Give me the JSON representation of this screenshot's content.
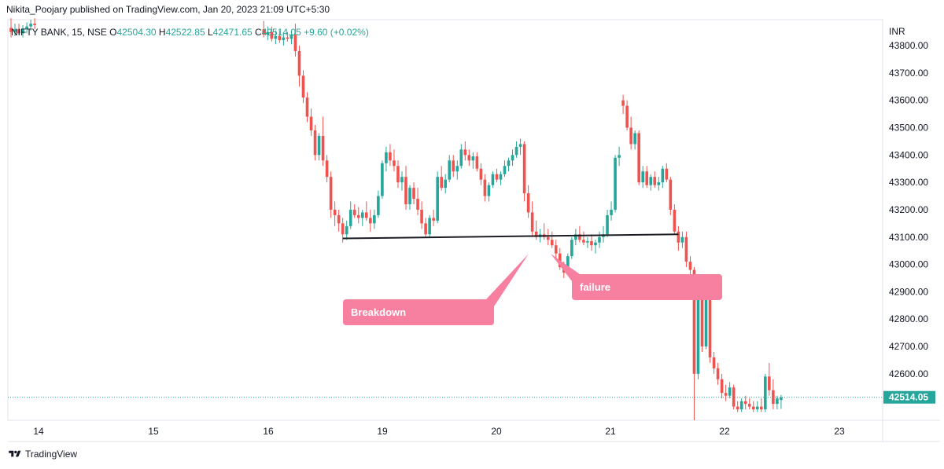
{
  "header": {
    "text": "Nikita_Poojary published on TradingView.com, Jan 20, 2023 21:09 UTC+5:30"
  },
  "footer": {
    "brand": "TradingView",
    "logo_icon": "tradingview-logo-icon"
  },
  "chart_data": {
    "type": "candlestick",
    "title": "",
    "legend": {
      "symbol": "NIFTY BANK, 15, NSE",
      "open_label": "O",
      "open": "42504.30",
      "high_label": "H",
      "high": "42522.85",
      "low_label": "L",
      "low": "42471.65",
      "close_label": "C",
      "close": "42514.05",
      "change": "+9.60 (+0.02%)"
    },
    "currency": "INR",
    "ylim": [
      42430,
      43895
    ],
    "y_ticks": [
      "43800.00",
      "43700.00",
      "43600.00",
      "43500.00",
      "43400.00",
      "43300.00",
      "43200.00",
      "43100.00",
      "43000.00",
      "42900.00",
      "42800.00",
      "42700.00",
      "42600.00"
    ],
    "y_tick_values": [
      43800,
      43700,
      43600,
      43500,
      43400,
      43300,
      43200,
      43100,
      43000,
      42900,
      42800,
      42700,
      42600
    ],
    "x_ticks": [
      "14",
      "15",
      "16",
      "19",
      "20",
      "21",
      "22",
      "23"
    ],
    "last_price": "42514.05",
    "last_price_value": 42514.05,
    "colors": {
      "up": "#26a69a",
      "down": "#ef5350",
      "annotation": "#f77fa0",
      "trendline": "#1c1d24",
      "price_line": "#26a69a"
    },
    "candles": [
      {
        "t": 0,
        "o": 43865,
        "h": 43900,
        "l": 43830,
        "c": 43850
      },
      {
        "t": 1,
        "o": 43850,
        "h": 43880,
        "l": 43835,
        "c": 43860
      },
      {
        "t": 2,
        "o": 43860,
        "h": 43880,
        "l": 43840,
        "c": 43845
      },
      {
        "t": 3,
        "o": 43845,
        "h": 43875,
        "l": 43830,
        "c": 43860
      },
      {
        "t": 4,
        "o": 43860,
        "h": 43885,
        "l": 43845,
        "c": 43870
      },
      {
        "t": 5,
        "o": 43870,
        "h": 43895,
        "l": 43855,
        "c": 43880
      },
      {
        "t": 6,
        "o": 43880,
        "h": 43900,
        "l": 43860,
        "c": 43875
      },
      {
        "t": 64,
        "o": 43860,
        "h": 43890,
        "l": 43830,
        "c": 43840
      },
      {
        "t": 65,
        "o": 43840,
        "h": 43870,
        "l": 43820,
        "c": 43850
      },
      {
        "t": 66,
        "o": 43850,
        "h": 43870,
        "l": 43815,
        "c": 43825
      },
      {
        "t": 67,
        "o": 43825,
        "h": 43855,
        "l": 43805,
        "c": 43835
      },
      {
        "t": 68,
        "o": 43835,
        "h": 43855,
        "l": 43810,
        "c": 43820
      },
      {
        "t": 69,
        "o": 43820,
        "h": 43845,
        "l": 43800,
        "c": 43830
      },
      {
        "t": 70,
        "o": 43830,
        "h": 43850,
        "l": 43815,
        "c": 43825
      },
      {
        "t": 71,
        "o": 43825,
        "h": 43845,
        "l": 43805,
        "c": 43840
      },
      {
        "t": 72,
        "o": 43840,
        "h": 43880,
        "l": 43760,
        "c": 43780
      },
      {
        "t": 73,
        "o": 43780,
        "h": 43800,
        "l": 43650,
        "c": 43690
      },
      {
        "t": 74,
        "o": 43690,
        "h": 43710,
        "l": 43590,
        "c": 43610
      },
      {
        "t": 75,
        "o": 43610,
        "h": 43630,
        "l": 43520,
        "c": 43540
      },
      {
        "t": 76,
        "o": 43540,
        "h": 43570,
        "l": 43470,
        "c": 43490
      },
      {
        "t": 77,
        "o": 43490,
        "h": 43510,
        "l": 43380,
        "c": 43400
      },
      {
        "t": 78,
        "o": 43400,
        "h": 43480,
        "l": 43380,
        "c": 43470
      },
      {
        "t": 79,
        "o": 43470,
        "h": 43540,
        "l": 43360,
        "c": 43380
      },
      {
        "t": 80,
        "o": 43380,
        "h": 43400,
        "l": 43300,
        "c": 43320
      },
      {
        "t": 81,
        "o": 43320,
        "h": 43340,
        "l": 43170,
        "c": 43200
      },
      {
        "t": 82,
        "o": 43200,
        "h": 43230,
        "l": 43140,
        "c": 43180
      },
      {
        "t": 83,
        "o": 43180,
        "h": 43200,
        "l": 43120,
        "c": 43150
      },
      {
        "t": 84,
        "o": 43150,
        "h": 43170,
        "l": 43080,
        "c": 43110
      },
      {
        "t": 85,
        "o": 43110,
        "h": 43160,
        "l": 43090,
        "c": 43140
      },
      {
        "t": 86,
        "o": 43140,
        "h": 43230,
        "l": 43130,
        "c": 43200
      },
      {
        "t": 87,
        "o": 43200,
        "h": 43220,
        "l": 43170,
        "c": 43180
      },
      {
        "t": 88,
        "o": 43180,
        "h": 43210,
        "l": 43150,
        "c": 43170
      },
      {
        "t": 89,
        "o": 43170,
        "h": 43200,
        "l": 43140,
        "c": 43190
      },
      {
        "t": 90,
        "o": 43190,
        "h": 43230,
        "l": 43160,
        "c": 43170
      },
      {
        "t": 91,
        "o": 43170,
        "h": 43200,
        "l": 43120,
        "c": 43150
      },
      {
        "t": 92,
        "o": 43150,
        "h": 43200,
        "l": 43130,
        "c": 43180
      },
      {
        "t": 93,
        "o": 43180,
        "h": 43270,
        "l": 43170,
        "c": 43250
      },
      {
        "t": 94,
        "o": 43250,
        "h": 43380,
        "l": 43240,
        "c": 43370
      },
      {
        "t": 95,
        "o": 43370,
        "h": 43430,
        "l": 43340,
        "c": 43410
      },
      {
        "t": 96,
        "o": 43410,
        "h": 43440,
        "l": 43360,
        "c": 43380
      },
      {
        "t": 97,
        "o": 43380,
        "h": 43420,
        "l": 43340,
        "c": 43360
      },
      {
        "t": 98,
        "o": 43360,
        "h": 43380,
        "l": 43280,
        "c": 43300
      },
      {
        "t": 99,
        "o": 43300,
        "h": 43340,
        "l": 43270,
        "c": 43320
      },
      {
        "t": 100,
        "o": 43320,
        "h": 43360,
        "l": 43200,
        "c": 43220
      },
      {
        "t": 101,
        "o": 43220,
        "h": 43290,
        "l": 43200,
        "c": 43280
      },
      {
        "t": 102,
        "o": 43280,
        "h": 43300,
        "l": 43220,
        "c": 43240
      },
      {
        "t": 103,
        "o": 43240,
        "h": 43280,
        "l": 43180,
        "c": 43200
      },
      {
        "t": 104,
        "o": 43200,
        "h": 43230,
        "l": 43130,
        "c": 43150
      },
      {
        "t": 105,
        "o": 43150,
        "h": 43170,
        "l": 43100,
        "c": 43110
      },
      {
        "t": 106,
        "o": 43110,
        "h": 43180,
        "l": 43100,
        "c": 43170
      },
      {
        "t": 107,
        "o": 43170,
        "h": 43200,
        "l": 43140,
        "c": 43160
      },
      {
        "t": 108,
        "o": 43160,
        "h": 43340,
        "l": 43150,
        "c": 43320
      },
      {
        "t": 109,
        "o": 43320,
        "h": 43360,
        "l": 43270,
        "c": 43280
      },
      {
        "t": 110,
        "o": 43280,
        "h": 43330,
        "l": 43260,
        "c": 43310
      },
      {
        "t": 111,
        "o": 43310,
        "h": 43400,
        "l": 43300,
        "c": 43380
      },
      {
        "t": 112,
        "o": 43380,
        "h": 43400,
        "l": 43320,
        "c": 43340
      },
      {
        "t": 113,
        "o": 43340,
        "h": 43380,
        "l": 43310,
        "c": 43360
      },
      {
        "t": 114,
        "o": 43360,
        "h": 43440,
        "l": 43350,
        "c": 43420
      },
      {
        "t": 115,
        "o": 43420,
        "h": 43450,
        "l": 43380,
        "c": 43400
      },
      {
        "t": 116,
        "o": 43400,
        "h": 43420,
        "l": 43360,
        "c": 43380
      },
      {
        "t": 117,
        "o": 43380,
        "h": 43410,
        "l": 43350,
        "c": 43395
      },
      {
        "t": 118,
        "o": 43395,
        "h": 43410,
        "l": 43340,
        "c": 43350
      },
      {
        "t": 119,
        "o": 43350,
        "h": 43370,
        "l": 43290,
        "c": 43310
      },
      {
        "t": 120,
        "o": 43310,
        "h": 43330,
        "l": 43230,
        "c": 43250
      },
      {
        "t": 121,
        "o": 43250,
        "h": 43300,
        "l": 43230,
        "c": 43290
      },
      {
        "t": 122,
        "o": 43290,
        "h": 43340,
        "l": 43280,
        "c": 43330
      },
      {
        "t": 123,
        "o": 43330,
        "h": 43350,
        "l": 43300,
        "c": 43310
      },
      {
        "t": 124,
        "o": 43310,
        "h": 43340,
        "l": 43290,
        "c": 43330
      },
      {
        "t": 125,
        "o": 43330,
        "h": 43380,
        "l": 43320,
        "c": 43360
      },
      {
        "t": 126,
        "o": 43360,
        "h": 43390,
        "l": 43340,
        "c": 43380
      },
      {
        "t": 127,
        "o": 43380,
        "h": 43420,
        "l": 43360,
        "c": 43400
      },
      {
        "t": 128,
        "o": 43400,
        "h": 43450,
        "l": 43390,
        "c": 43430
      },
      {
        "t": 129,
        "o": 43430,
        "h": 43460,
        "l": 43400,
        "c": 43440
      },
      {
        "t": 130,
        "o": 43440,
        "h": 43450,
        "l": 43230,
        "c": 43260
      },
      {
        "t": 131,
        "o": 43260,
        "h": 43290,
        "l": 43170,
        "c": 43190
      },
      {
        "t": 132,
        "o": 43190,
        "h": 43230,
        "l": 43100,
        "c": 43120
      },
      {
        "t": 133,
        "o": 43120,
        "h": 43160,
        "l": 43090,
        "c": 43100
      },
      {
        "t": 134,
        "o": 43100,
        "h": 43130,
        "l": 43080,
        "c": 43110
      },
      {
        "t": 135,
        "o": 43110,
        "h": 43150,
        "l": 43090,
        "c": 43100
      },
      {
        "t": 136,
        "o": 43100,
        "h": 43130,
        "l": 43070,
        "c": 43090
      },
      {
        "t": 137,
        "o": 43090,
        "h": 43120,
        "l": 43060,
        "c": 43070
      },
      {
        "t": 138,
        "o": 43070,
        "h": 43090,
        "l": 43020,
        "c": 43040
      },
      {
        "t": 139,
        "o": 43040,
        "h": 43060,
        "l": 42980,
        "c": 42990
      },
      {
        "t": 140,
        "o": 42990,
        "h": 43010,
        "l": 42950,
        "c": 42970
      },
      {
        "t": 141,
        "o": 42970,
        "h": 43040,
        "l": 42960,
        "c": 43030
      },
      {
        "t": 142,
        "o": 43030,
        "h": 43100,
        "l": 43020,
        "c": 43090
      },
      {
        "t": 143,
        "o": 43090,
        "h": 43130,
        "l": 43070,
        "c": 43110
      },
      {
        "t": 144,
        "o": 43110,
        "h": 43140,
        "l": 43080,
        "c": 43090
      },
      {
        "t": 145,
        "o": 43090,
        "h": 43120,
        "l": 43070,
        "c": 43080
      },
      {
        "t": 146,
        "o": 43080,
        "h": 43100,
        "l": 43060,
        "c": 43085
      },
      {
        "t": 147,
        "o": 43085,
        "h": 43110,
        "l": 43050,
        "c": 43070
      },
      {
        "t": 148,
        "o": 43070,
        "h": 43090,
        "l": 43040,
        "c": 43080
      },
      {
        "t": 149,
        "o": 43080,
        "h": 43120,
        "l": 43060,
        "c": 43100
      },
      {
        "t": 150,
        "o": 43100,
        "h": 43140,
        "l": 43080,
        "c": 43110
      },
      {
        "t": 151,
        "o": 43110,
        "h": 43200,
        "l": 43100,
        "c": 43180
      },
      {
        "t": 152,
        "o": 43180,
        "h": 43230,
        "l": 43160,
        "c": 43200
      },
      {
        "t": 153,
        "o": 43200,
        "h": 43400,
        "l": 43190,
        "c": 43390
      },
      {
        "t": 154,
        "o": 43390,
        "h": 43430,
        "l": 43360,
        "c": 43400
      },
      {
        "t": 155,
        "o": 43600,
        "h": 43620,
        "l": 43550,
        "c": 43580
      },
      {
        "t": 156,
        "o": 43580,
        "h": 43600,
        "l": 43490,
        "c": 43500
      },
      {
        "t": 157,
        "o": 43500,
        "h": 43540,
        "l": 43420,
        "c": 43440
      },
      {
        "t": 158,
        "o": 43440,
        "h": 43490,
        "l": 43420,
        "c": 43480
      },
      {
        "t": 159,
        "o": 43480,
        "h": 43490,
        "l": 43290,
        "c": 43300
      },
      {
        "t": 160,
        "o": 43300,
        "h": 43360,
        "l": 43280,
        "c": 43340
      },
      {
        "t": 161,
        "o": 43340,
        "h": 43360,
        "l": 43280,
        "c": 43290
      },
      {
        "t": 162,
        "o": 43290,
        "h": 43330,
        "l": 43270,
        "c": 43320
      },
      {
        "t": 163,
        "o": 43320,
        "h": 43340,
        "l": 43280,
        "c": 43290
      },
      {
        "t": 164,
        "o": 43290,
        "h": 43320,
        "l": 43270,
        "c": 43300
      },
      {
        "t": 165,
        "o": 43300,
        "h": 43360,
        "l": 43280,
        "c": 43350
      },
      {
        "t": 166,
        "o": 43350,
        "h": 43370,
        "l": 43300,
        "c": 43310
      },
      {
        "t": 167,
        "o": 43310,
        "h": 43320,
        "l": 43180,
        "c": 43200
      },
      {
        "t": 168,
        "o": 43200,
        "h": 43220,
        "l": 43110,
        "c": 43120
      },
      {
        "t": 169,
        "o": 43120,
        "h": 43140,
        "l": 43050,
        "c": 43080
      },
      {
        "t": 170,
        "o": 43080,
        "h": 43120,
        "l": 43060,
        "c": 43100
      },
      {
        "t": 171,
        "o": 43100,
        "h": 43120,
        "l": 42990,
        "c": 43010
      },
      {
        "t": 172,
        "o": 43010,
        "h": 43030,
        "l": 42940,
        "c": 42980
      },
      {
        "t": 173,
        "o": 42980,
        "h": 42990,
        "l": 42430,
        "c": 42600
      },
      {
        "t": 174,
        "o": 42600,
        "h": 42900,
        "l": 42580,
        "c": 42880
      },
      {
        "t": 175,
        "o": 42880,
        "h": 42960,
        "l": 42680,
        "c": 42700
      },
      {
        "t": 176,
        "o": 42700,
        "h": 42930,
        "l": 42690,
        "c": 42900
      },
      {
        "t": 177,
        "o": 42900,
        "h": 42920,
        "l": 42640,
        "c": 42660
      },
      {
        "t": 178,
        "o": 42660,
        "h": 42680,
        "l": 42600,
        "c": 42620
      },
      {
        "t": 179,
        "o": 42620,
        "h": 42640,
        "l": 42560,
        "c": 42580
      },
      {
        "t": 180,
        "o": 42580,
        "h": 42600,
        "l": 42510,
        "c": 42530
      },
      {
        "t": 181,
        "o": 42530,
        "h": 42560,
        "l": 42500,
        "c": 42520
      },
      {
        "t": 182,
        "o": 42520,
        "h": 42570,
        "l": 42510,
        "c": 42550
      },
      {
        "t": 183,
        "o": 42550,
        "h": 42560,
        "l": 42470,
        "c": 42480
      },
      {
        "t": 184,
        "o": 42480,
        "h": 42500,
        "l": 42460,
        "c": 42470
      },
      {
        "t": 185,
        "o": 42470,
        "h": 42510,
        "l": 42460,
        "c": 42500
      },
      {
        "t": 186,
        "o": 42500,
        "h": 42520,
        "l": 42470,
        "c": 42490
      },
      {
        "t": 187,
        "o": 42490,
        "h": 42510,
        "l": 42470,
        "c": 42480
      },
      {
        "t": 188,
        "o": 42480,
        "h": 42500,
        "l": 42460,
        "c": 42470
      },
      {
        "t": 189,
        "o": 42470,
        "h": 42500,
        "l": 42460,
        "c": 42480
      },
      {
        "t": 190,
        "o": 42480,
        "h": 42510,
        "l": 42460,
        "c": 42470
      },
      {
        "t": 191,
        "o": 42470,
        "h": 42600,
        "l": 42460,
        "c": 42590
      },
      {
        "t": 192,
        "o": 42590,
        "h": 42640,
        "l": 42520,
        "c": 42540
      },
      {
        "t": 193,
        "o": 42540,
        "h": 42580,
        "l": 42470,
        "c": 42490
      },
      {
        "t": 194,
        "o": 42490,
        "h": 42520,
        "l": 42470,
        "c": 42510
      },
      {
        "t": 195,
        "o": 42504.3,
        "h": 42522.85,
        "l": 42471.65,
        "c": 42514.05
      }
    ],
    "trendline": {
      "t0": 84,
      "p0": 43095,
      "t1": 169,
      "p1": 43110
    },
    "annotations": [
      {
        "text": "Breakdown",
        "anchor_t": 139,
        "anchor_p": 43075
      },
      {
        "text": "failure",
        "anchor_t": 142,
        "anchor_p": 43080
      }
    ]
  }
}
